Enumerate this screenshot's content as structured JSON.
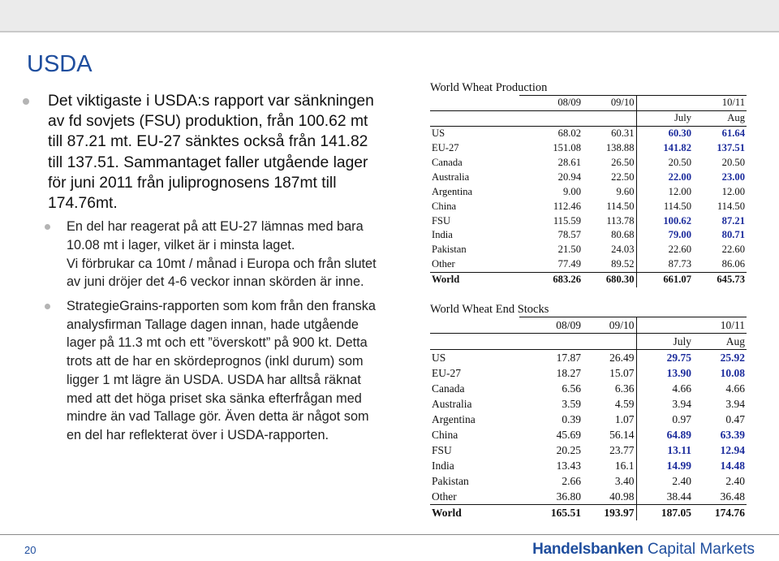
{
  "slide": {
    "title": "USDA",
    "page_number": "20"
  },
  "bullets": [
    {
      "level": 1,
      "text": "Det viktigaste i USDA:s rapport var sänkningen av fd sovjets (FSU) produktion, från 100.62 mt till 87.21 mt. EU-27 sänktes också från 141.82 till 137.51. Sammantaget faller utgående lager för juni 2011 från juliprognosens 187mt till 174.76mt."
    },
    {
      "level": 2,
      "text": "En del har reagerat på att EU-27 lämnas med bara 10.08 mt i lager, vilket är i minsta laget.",
      "text2": "Vi förbrukar ca 10mt / månad i Europa och från slutet av juni dröjer det 4-6 veckor innan skörden är inne."
    },
    {
      "level": 2,
      "text": "StrategieGrains-rapporten som kom från den franska analysfirman Tallage dagen innan, hade utgående lager på 11.3 mt och ett ”överskott” på 900 kt. Detta trots att de har en skördeprognos (inkl durum) som ligger 1 mt lägre än USDA. USDA har alltså räknat med att det höga priset ska sänka efterfrågan med mindre än vad Tallage gör. Även detta är något som en del har reflekterat över i USDA-rapporten."
    }
  ],
  "production": {
    "title": "World Wheat Production",
    "headers": [
      "08/09",
      "09/10",
      "10/11"
    ],
    "subheaders": [
      "July",
      "Aug"
    ],
    "rows": [
      {
        "label": "US",
        "v1": "68.02",
        "v2": "60.31",
        "v3": "60.30",
        "v4": "61.64",
        "blue": true
      },
      {
        "label": "EU-27",
        "v1": "151.08",
        "v2": "138.88",
        "v3": "141.82",
        "v4": "137.51",
        "blue": true
      },
      {
        "label": "Canada",
        "v1": "28.61",
        "v2": "26.50",
        "v3": "20.50",
        "v4": "20.50",
        "blue": false
      },
      {
        "label": "Australia",
        "v1": "20.94",
        "v2": "22.50",
        "v3": "22.00",
        "v4": "23.00",
        "blue": true
      },
      {
        "label": "Argentina",
        "v1": "9.00",
        "v2": "9.60",
        "v3": "12.00",
        "v4": "12.00",
        "blue": false
      },
      {
        "label": "China",
        "v1": "112.46",
        "v2": "114.50",
        "v3": "114.50",
        "v4": "114.50",
        "blue": false
      },
      {
        "label": "FSU",
        "v1": "115.59",
        "v2": "113.78",
        "v3": "100.62",
        "v4": "87.21",
        "blue": true
      },
      {
        "label": "India",
        "v1": "78.57",
        "v2": "80.68",
        "v3": "79.00",
        "v4": "80.71",
        "blue": true
      },
      {
        "label": "Pakistan",
        "v1": "21.50",
        "v2": "24.03",
        "v3": "22.60",
        "v4": "22.60",
        "blue": false
      },
      {
        "label": "Other",
        "v1": "77.49",
        "v2": "89.52",
        "v3": "87.73",
        "v4": "86.06",
        "blue": false
      },
      {
        "label": "World",
        "v1": "683.26",
        "v2": "680.30",
        "v3": "661.07",
        "v4": "645.73",
        "blue": false,
        "bold": true
      }
    ]
  },
  "stocks": {
    "title": "World Wheat End Stocks",
    "headers": [
      "08/09",
      "09/10",
      "10/11"
    ],
    "subheaders": [
      "July",
      "Aug"
    ],
    "rows": [
      {
        "label": "US",
        "v1": "17.87",
        "v2": "26.49",
        "v3": "29.75",
        "v4": "25.92",
        "blue": true
      },
      {
        "label": "EU-27",
        "v1": "18.27",
        "v2": "15.07",
        "v3": "13.90",
        "v4": "10.08",
        "blue": true
      },
      {
        "label": "Canada",
        "v1": "6.56",
        "v2": "6.36",
        "v3": "4.66",
        "v4": "4.66",
        "blue": false
      },
      {
        "label": "Australia",
        "v1": "3.59",
        "v2": "4.59",
        "v3": "3.94",
        "v4": "3.94",
        "blue": false
      },
      {
        "label": "Argentina",
        "v1": "0.39",
        "v2": "1.07",
        "v3": "0.97",
        "v4": "0.47",
        "blue": false
      },
      {
        "label": "China",
        "v1": "45.69",
        "v2": "56.14",
        "v3": "64.89",
        "v4": "63.39",
        "blue": true
      },
      {
        "label": "FSU",
        "v1": "20.25",
        "v2": "23.77",
        "v3": "13.11",
        "v4": "12.94",
        "blue": true
      },
      {
        "label": "India",
        "v1": "13.43",
        "v2": "16.1",
        "v3": "14.99",
        "v4": "14.48",
        "blue": true
      },
      {
        "label": "Pakistan",
        "v1": "2.66",
        "v2": "3.40",
        "v3": "2.40",
        "v4": "2.40",
        "blue": false
      },
      {
        "label": "Other",
        "v1": "36.80",
        "v2": "40.98",
        "v3": "38.44",
        "v4": "36.48",
        "blue": false
      },
      {
        "label": "World",
        "v1": "165.51",
        "v2": "193.97",
        "v3": "187.05",
        "v4": "174.76",
        "blue": false,
        "bold": true
      }
    ]
  },
  "footer": {
    "brand": "Handelsbanken",
    "sub": " Capital Markets"
  },
  "colors": {
    "title_blue": "#1f4e9e",
    "value_blue": "#1c2c9c",
    "bullet_grey": "#b4b4b4"
  }
}
